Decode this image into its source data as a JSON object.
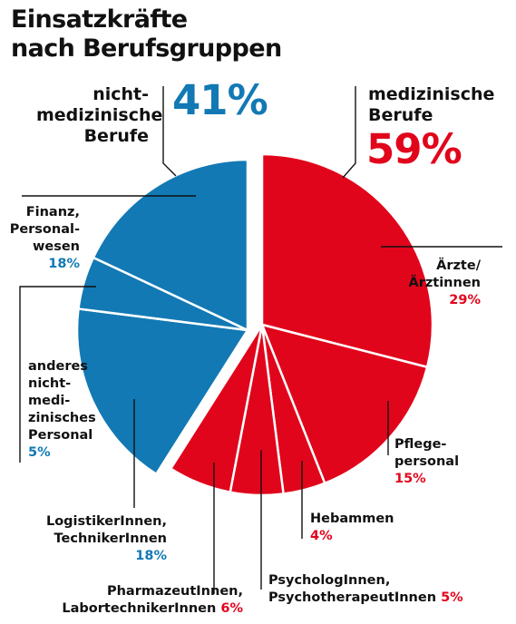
{
  "title_line1": "Einsatzkräfte",
  "title_line2": "nach Berufsgruppen",
  "groups": {
    "non_medical": {
      "label_line1": "nicht-",
      "label_line2": "medizinische",
      "label_line3": "Berufe",
      "percent": "41%",
      "color": "#1279b4"
    },
    "medical": {
      "label_line1": "medizinische",
      "label_line2": "Berufe",
      "percent": "59%",
      "color": "#e1051c"
    }
  },
  "chart_data": {
    "type": "pie",
    "unit": "%",
    "slices": [
      {
        "label": "Ärzte/ Ärztinnen",
        "value": 29,
        "group": "medical",
        "color": "#e1051c"
      },
      {
        "label": "Pflegepersonal",
        "value": 15,
        "group": "medical",
        "color": "#e1051c"
      },
      {
        "label": "Hebammen",
        "value": 4,
        "group": "medical",
        "color": "#e1051c"
      },
      {
        "label": "PsychologInnen, PsychotherapeutInnen",
        "value": 5,
        "group": "medical",
        "color": "#e1051c"
      },
      {
        "label": "PharmazeutInnen, LabortechnikerInnen",
        "value": 6,
        "group": "medical",
        "color": "#e1051c"
      },
      {
        "label": "LogistikerInnen, TechnikerInnen",
        "value": 18,
        "group": "non_medical",
        "color": "#1279b4"
      },
      {
        "label": "anderes nicht-medizinisches Personal",
        "value": 5,
        "group": "non_medical",
        "color": "#1279b4"
      },
      {
        "label": "Finanz, Personalwesen",
        "value": 18,
        "group": "non_medical",
        "color": "#1279b4"
      }
    ]
  },
  "labels": {
    "aerzte": {
      "l1": "Ärzte/",
      "l2": "Ärztinnen",
      "pct": "29%"
    },
    "pflege": {
      "l1": "Pflege-",
      "l2": "personal",
      "pct": "15%"
    },
    "hebammen": {
      "l1": "Hebammen",
      "pct": "4%"
    },
    "psycho": {
      "l1": "PsychologInnen,",
      "l2": "PsychotherapeutInnen",
      "pct": "5%"
    },
    "pharma": {
      "l1": "PharmazeutInnen,",
      "l2": "LabortechnikerInnen",
      "pct": "6%"
    },
    "logistik": {
      "l1": "LogistikerInnen,",
      "l2": "TechnikerInnen",
      "pct": "18%"
    },
    "anderes": {
      "l1": "anderes",
      "l2": "nicht-",
      "l3": "medi-",
      "l4": "zinisches",
      "l5": "Personal",
      "pct": "5%"
    },
    "finanz": {
      "l1": "Finanz,",
      "l2": "Personal-",
      "l3": "wesen",
      "pct": "18%"
    }
  }
}
